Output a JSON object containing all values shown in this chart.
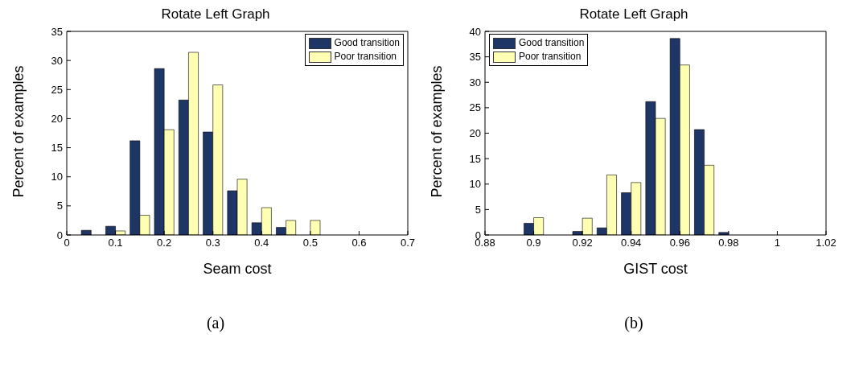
{
  "chart_data": [
    {
      "type": "bar",
      "title": "Rotate Left Graph",
      "xlabel": "Seam cost",
      "ylabel": "Percent of examples",
      "x": [
        0.05,
        0.1,
        0.15,
        0.2,
        0.25,
        0.3,
        0.35,
        0.4,
        0.45,
        0.5
      ],
      "series": [
        {
          "name": "Good transition",
          "color": "#1e3666",
          "values": [
            0.8,
            1.5,
            16.2,
            28.6,
            23.2,
            17.7,
            7.6,
            2.1,
            1.3,
            null
          ]
        },
        {
          "name": "Poor transition",
          "color": "#ffffb4",
          "values": [
            null,
            0.7,
            3.4,
            18.1,
            31.4,
            25.8,
            9.6,
            4.7,
            2.5,
            2.5
          ]
        }
      ],
      "xlim": [
        0,
        0.7
      ],
      "xticks": [
        0,
        0.1,
        0.2,
        0.3,
        0.4,
        0.5,
        0.6,
        0.7
      ],
      "ylim": [
        0,
        35
      ],
      "yticks": [
        0,
        5,
        10,
        15,
        20,
        25,
        30,
        35
      ],
      "grid": false,
      "legend": "top right",
      "annotations": [
        "(a)"
      ]
    },
    {
      "type": "bar",
      "title": "Rotate Left Graph",
      "xlabel": "GIST cost",
      "ylabel": "Percent of examples",
      "x": [
        0.9,
        0.91,
        0.92,
        0.93,
        0.94,
        0.95,
        0.96,
        0.97,
        0.98
      ],
      "series": [
        {
          "name": "Good transition",
          "color": "#1e3666",
          "values": [
            2.3,
            null,
            0.7,
            1.4,
            8.3,
            26.2,
            38.6,
            20.7,
            0.5
          ]
        },
        {
          "name": "Poor transition",
          "color": "#ffffb4",
          "values": [
            3.4,
            null,
            3.3,
            11.8,
            10.3,
            22.9,
            33.4,
            13.7,
            null
          ]
        }
      ],
      "xlim": [
        0.88,
        1.02
      ],
      "xticks": [
        0.88,
        0.9,
        0.92,
        0.94,
        0.96,
        0.98,
        1,
        1.02
      ],
      "ylim": [
        0,
        40
      ],
      "yticks": [
        0,
        5,
        10,
        15,
        20,
        25,
        30,
        35,
        40
      ],
      "grid": false,
      "legend": "top left",
      "annotations": [
        "(b)"
      ]
    }
  ]
}
